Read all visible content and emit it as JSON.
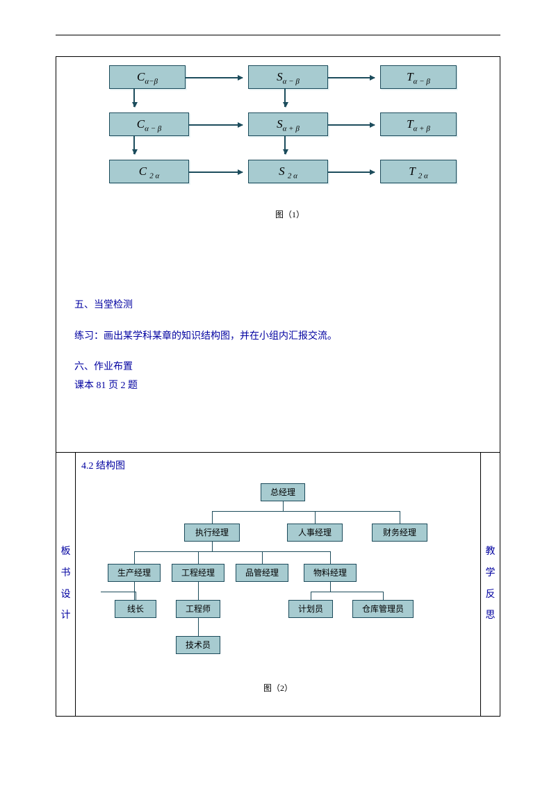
{
  "flow1": {
    "caption": "图（1）",
    "boxes": {
      "r1c1": "C<sub>α−β</sub>",
      "r1c2": "S<sub>α − β</sub>",
      "r1c3": "T<sub>α − β</sub>",
      "r2c1": "C<sub>α − β</sub>",
      "r2c2": "S<sub>α + β</sub>",
      "r2c3": "T<sub>α + β</sub>",
      "r3c1": "C <sub>2 α</sub>",
      "r3c2": "S <sub>2 α</sub>",
      "r3c3": "T <sub>2 α</sub>"
    },
    "box_bg": "#a7cbd0",
    "box_border": "#1b4a5a",
    "arrow_color": "#1c4c5c"
  },
  "text": {
    "sect5": "五、当堂检测",
    "practice": "练习：画出某学科某章的知识结构图，并在小组内汇报交流。",
    "sect6": "六、作业布置",
    "hw": "课本 81 页 2 题",
    "title42": "4.2 结构图",
    "caption2": "图（2）",
    "left_label": "板书设计",
    "right_label": "教学反思"
  },
  "org": {
    "nodes": {
      "gm": "总经理",
      "exec": "执行经理",
      "hr": "人事经理",
      "fin": "财务经理",
      "prod": "生产经理",
      "eng": "工程经理",
      "qc": "品管经理",
      "mat": "物料经理",
      "line": "线长",
      "enger": "工程师",
      "plan": "计划员",
      "ware": "仓库管理员",
      "tech": "技术员"
    },
    "box_bg": "#a7cbd0",
    "box_border": "#1b4a5a",
    "line_color": "#1b4a5a"
  },
  "colors": {
    "link_blue": "#0000a0"
  }
}
